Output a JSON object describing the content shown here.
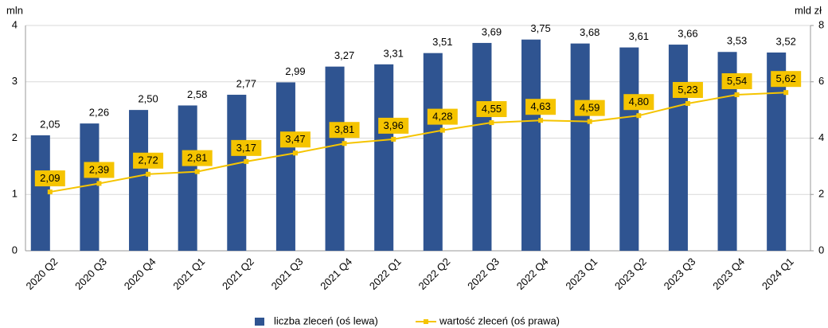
{
  "chart_data": {
    "type": "bar",
    "y_label": "mln",
    "y2_label": "mld zł",
    "categories": [
      "2020 Q2",
      "2020 Q3",
      "2020 Q4",
      "2021 Q1",
      "2021 Q2",
      "2021 Q3",
      "2021 Q4",
      "2022 Q1",
      "2022 Q2",
      "2022 Q3",
      "2022 Q4",
      "2023 Q1",
      "2023 Q2",
      "2023 Q3",
      "2023 Q4",
      "2024 Q1"
    ],
    "series": [
      {
        "name": "liczba zleceń (oś lewa)",
        "color": "#2f5491",
        "type": "bar",
        "values": [
          2.05,
          2.26,
          2.5,
          2.58,
          2.77,
          2.99,
          3.27,
          3.31,
          3.51,
          3.69,
          3.75,
          3.68,
          3.61,
          3.66,
          3.53,
          3.52
        ],
        "value_labels": [
          "2,05",
          "2,26",
          "2,50",
          "2,58",
          "2,77",
          "2,99",
          "3,27",
          "3,31",
          "3,51",
          "3,69",
          "3,75",
          "3,68",
          "3,61",
          "3,66",
          "3,53",
          "3,52"
        ]
      },
      {
        "name": "wartość zleceń (oś prawa)",
        "color": "#f5c400",
        "type": "line",
        "axis": "y2",
        "values": [
          2.09,
          2.39,
          2.72,
          2.81,
          3.17,
          3.47,
          3.81,
          3.96,
          4.28,
          4.55,
          4.63,
          4.59,
          4.8,
          5.23,
          5.54,
          5.62
        ],
        "value_labels": [
          "2,09",
          "2,39",
          "2,72",
          "2,81",
          "3,17",
          "3,47",
          "3,81",
          "3,96",
          "4,28",
          "4,55",
          "4,63",
          "4,59",
          "4,80",
          "5,23",
          "5,54",
          "5,62"
        ]
      }
    ],
    "ylim": [
      0,
      4
    ],
    "yticks": [
      0,
      1,
      2,
      3,
      4
    ],
    "y2lim": [
      0,
      8
    ],
    "y2ticks": [
      0,
      2,
      4,
      6,
      8
    ],
    "grid": true
  }
}
